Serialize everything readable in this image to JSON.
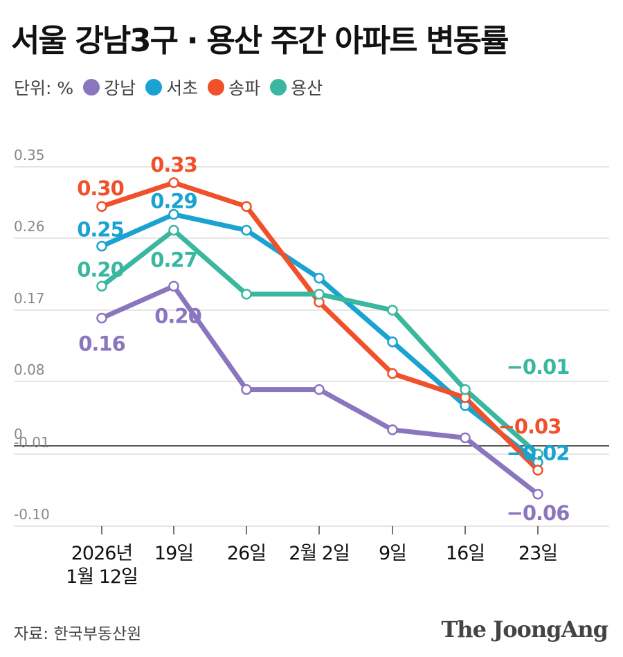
{
  "title": "서울 강남3구 · 용산 주간 아파트 변동률",
  "unit_label": "단위: %",
  "source": "자료: 한국부동산원",
  "logo_text": "The JoongAng",
  "chart_data": {
    "type": "line",
    "categories": [
      [
        "2026년",
        "1월 12일"
      ],
      [
        "19일"
      ],
      [
        "26일"
      ],
      [
        "2월 2일"
      ],
      [
        "9일"
      ],
      [
        "16일"
      ],
      [
        "23일"
      ]
    ],
    "y_ticks": [
      "0.35",
      "0.26",
      "0.17",
      "0.08",
      "0",
      "-0.01",
      "-0.10"
    ],
    "grid": true,
    "legend_position": "top-left",
    "series": [
      {
        "name": "강남",
        "color": "#8a76bf",
        "values": [
          0.16,
          0.2,
          0.07,
          0.07,
          0.02,
          0.01,
          -0.06
        ],
        "labels": [
          {
            "index": 0,
            "text": "0.16"
          },
          {
            "index": 1,
            "text": "0.20"
          },
          {
            "index": 6,
            "text": "−0.06"
          }
        ]
      },
      {
        "name": "서초",
        "color": "#1aa3d1",
        "values": [
          0.25,
          0.29,
          0.27,
          0.21,
          0.13,
          0.05,
          -0.02
        ],
        "labels": [
          {
            "index": 0,
            "text": "0.25"
          },
          {
            "index": 1,
            "text": "0.29"
          },
          {
            "index": 6,
            "text": "−0.02"
          }
        ]
      },
      {
        "name": "송파",
        "color": "#f0512a",
        "values": [
          0.3,
          0.33,
          0.3,
          0.18,
          0.09,
          0.06,
          -0.03
        ],
        "labels": [
          {
            "index": 0,
            "text": "0.30"
          },
          {
            "index": 1,
            "text": "0.33"
          },
          {
            "index": 6,
            "text": "−0.03"
          }
        ]
      },
      {
        "name": "용산",
        "color": "#39b79f",
        "values": [
          0.2,
          0.27,
          0.19,
          0.19,
          0.17,
          0.07,
          -0.01
        ],
        "labels": [
          {
            "index": 0,
            "text": "0.20"
          },
          {
            "index": 1,
            "text": "0.27"
          },
          {
            "index": 6,
            "text": "−0.01"
          }
        ]
      }
    ]
  }
}
